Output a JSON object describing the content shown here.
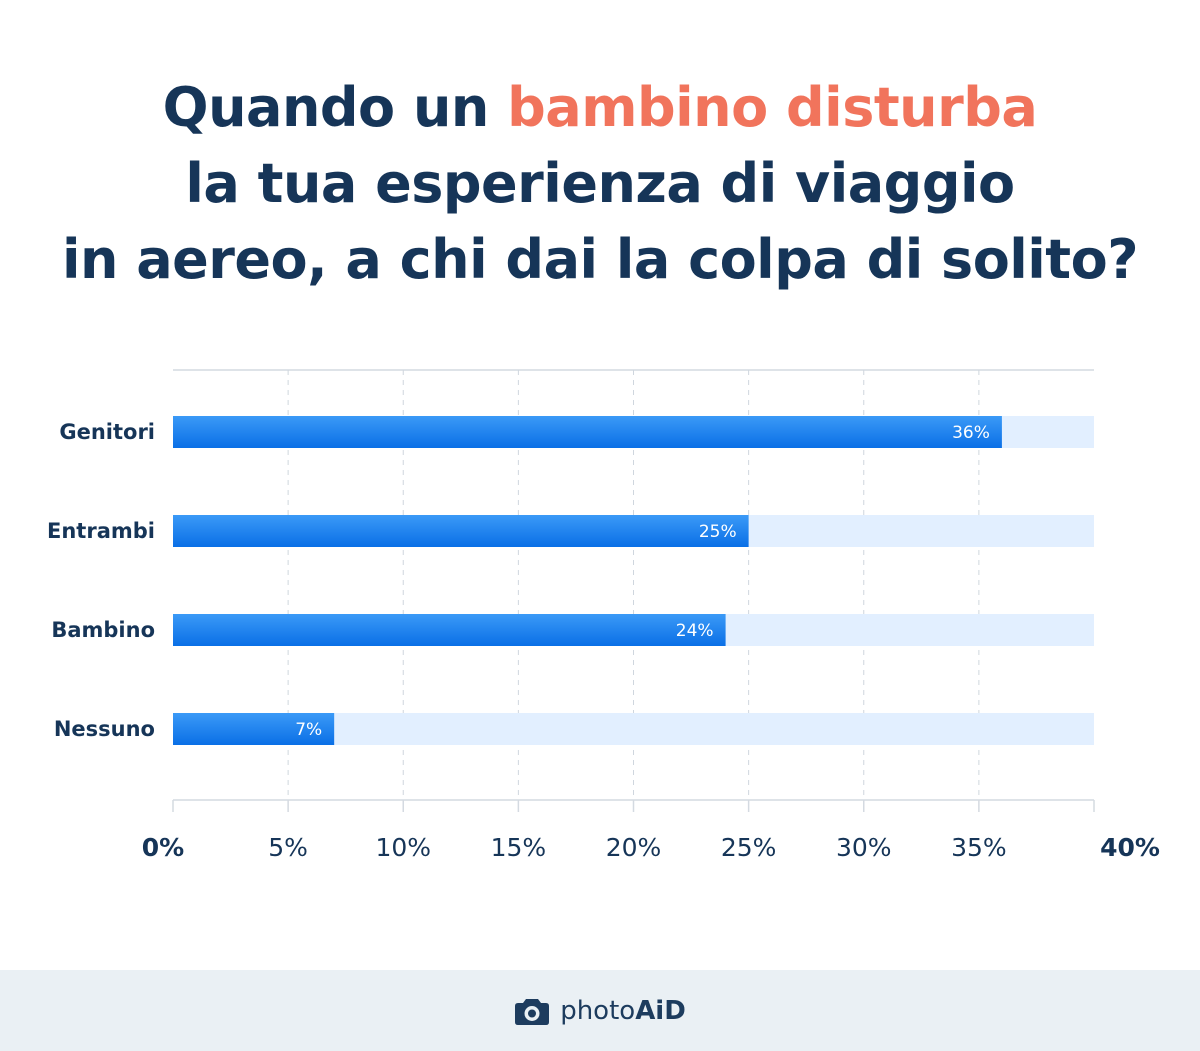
{
  "title": {
    "part1": "Quando un ",
    "highlight": "bambino disturba",
    "line2": "la tua esperienza di viaggio",
    "line3": "in aereo, a chi dai la colpa di solito?"
  },
  "colors": {
    "title": "#163558",
    "highlight": "#f1745c",
    "bar_top": "#3b9af7",
    "bar_bottom": "#0a6fe6",
    "track": "#e2efff",
    "grid": "#cfd6de"
  },
  "chart_data": {
    "type": "bar",
    "orientation": "horizontal",
    "categories": [
      "Genitori",
      "Entrambi",
      "Bambino",
      "Nessuno"
    ],
    "values": [
      36,
      25,
      24,
      7
    ],
    "data_labels": [
      "36%",
      "25%",
      "24%",
      "7%"
    ],
    "xlim": [
      0,
      40
    ],
    "xticks": [
      0,
      5,
      10,
      15,
      20,
      25,
      30,
      35,
      40
    ],
    "xtick_labels": [
      "0%",
      "5%",
      "10%",
      "15%",
      "20%",
      "25%",
      "30%",
      "35%",
      "40%"
    ],
    "grid": true
  },
  "footer": {
    "brand_part1": "photo",
    "brand_part2": "AiD",
    "icon": "camera-icon"
  }
}
